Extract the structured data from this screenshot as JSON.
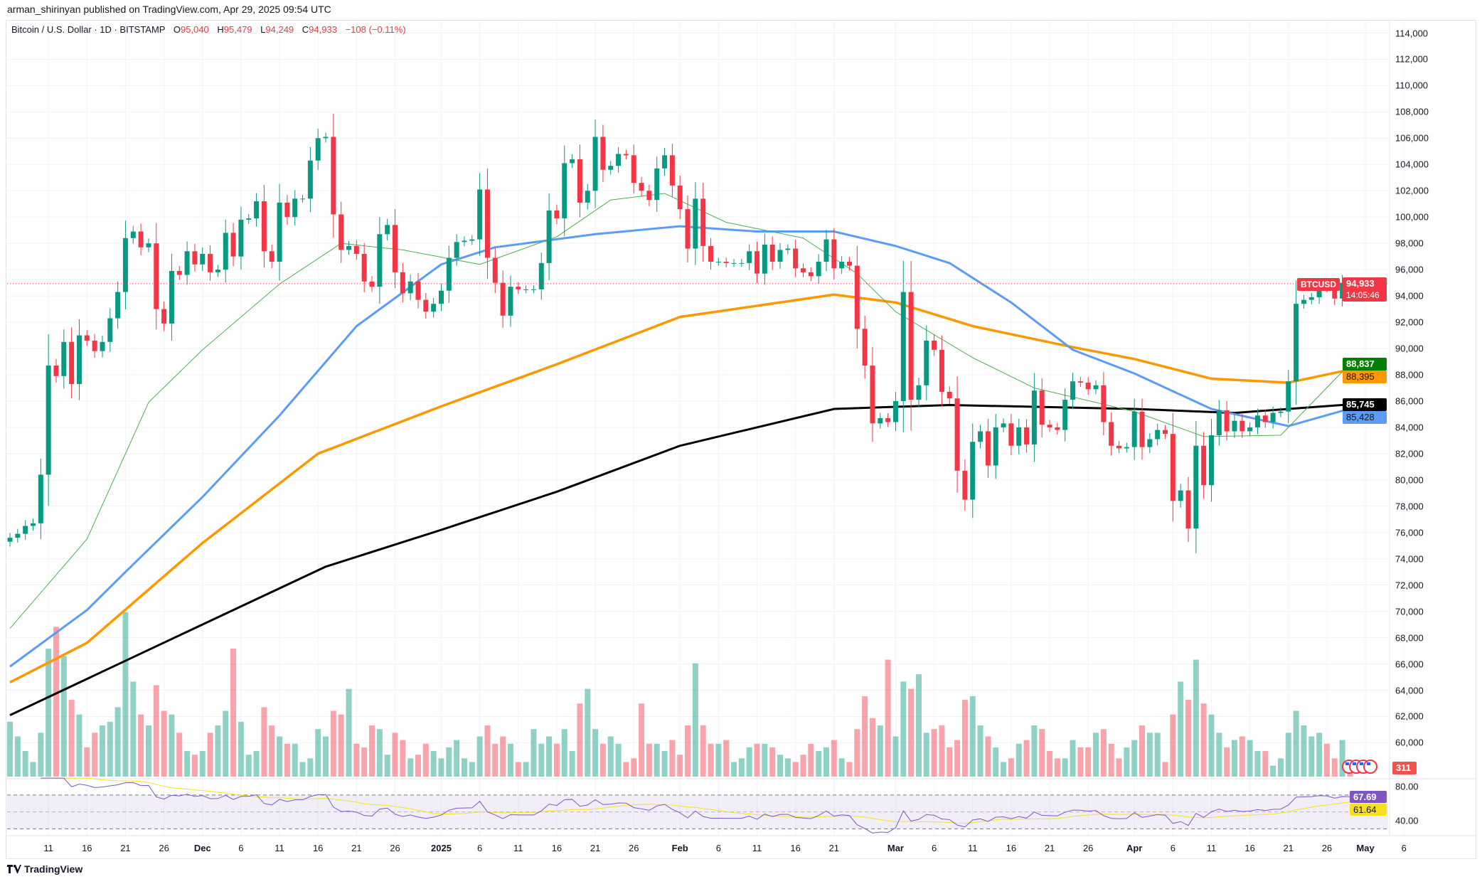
{
  "publisher": "arman_shirinyan published on TradingView.com, Apr 29, 2025 09:54 UTC",
  "legend": {
    "symbol": "Bitcoin / U.S. Dollar · 1D · BITSTAMP",
    "o_label": "O",
    "o": "95,040",
    "h_label": "H",
    "h": "95,479",
    "l_label": "L",
    "l": "94,249",
    "c_label": "C",
    "c": "94,933",
    "change": "−108 (−0.11%)"
  },
  "tags": {
    "symbol": "BTCUSD",
    "price": "94,933",
    "countdown": "14:05:46",
    "ma20": "88,837",
    "ma100": "88,395",
    "ma200": "85,745",
    "ma50": "85,428",
    "volume": "311",
    "rsi": "67.69",
    "rsi_ma": "61.64"
  },
  "colors": {
    "up": "#089981",
    "down": "#f23645",
    "ma20": "#4caf50",
    "ma50": "#5b9cf6",
    "ma100": "#ff9800",
    "ma200": "#000000",
    "rsi": "#7e57c2",
    "rsi_ma": "#f7e11e"
  },
  "logo": "TradingView",
  "chart_data": {
    "type": "candlestick",
    "start_date": "2024-11-06",
    "first_open": 75300,
    "closes": [
      75600,
      75900,
      76500,
      76700,
      80400,
      88700,
      87900,
      90500,
      87300,
      91000,
      90600,
      89800,
      90500,
      92300,
      94300,
      98400,
      98900,
      97700,
      98000,
      93000,
      91900,
      95900,
      95600,
      97400,
      96400,
      97200,
      95800,
      96000,
      98800,
      97000,
      99800,
      99900,
      101200,
      97400,
      96600,
      101100,
      100000,
      101400,
      101400,
      104300,
      106000,
      106100,
      100200,
      97500,
      97800,
      97200,
      95100,
      94700,
      98700,
      99400,
      95800,
      94200,
      95100,
      93700,
      92800,
      93400,
      94400,
      96900,
      98100,
      98200,
      98300,
      102100,
      96900,
      95000,
      92500,
      94700,
      94500,
      94500,
      94500,
      96500,
      100500,
      99900,
      104100,
      104400,
      101100,
      102000,
      106100,
      103600,
      103900,
      104800,
      104700,
      102600,
      102000,
      101300,
      103700,
      104700,
      102400,
      100600,
      97600,
      101400,
      97800,
      96600,
      96600,
      96500,
      96500,
      96500,
      97400,
      95700,
      97900,
      96600,
      97500,
      97600,
      96100,
      95800,
      95500,
      96600,
      98300,
      96100,
      96600,
      96300,
      91500,
      88700,
      84300,
      84700,
      84400,
      86000,
      94300,
      86100,
      87200,
      90600,
      89900,
      86700,
      86200,
      80700,
      78500,
      82900,
      83700,
      81100,
      84000,
      84300,
      82600,
      84000,
      82700,
      86800,
      84200,
      84000,
      83800,
      86100,
      87500,
      87400,
      86900,
      87200,
      84400,
      82600,
      82400,
      82500,
      85200,
      82500,
      83100,
      83800,
      83500,
      78400,
      79200,
      76300,
      82600,
      79600,
      83400,
      85300,
      83700,
      84500,
      83700,
      84000,
      84900,
      84400,
      85100,
      85200,
      87500,
      93400,
      93700,
      93900,
      94700,
      94600,
      93800,
      95000,
      94933
    ],
    "volumes": [
      1500,
      1100,
      700,
      400,
      1200,
      3500,
      4100,
      3300,
      2100,
      1700,
      800,
      1200,
      1400,
      1500,
      1900,
      4500,
      2600,
      1700,
      1400,
      2500,
      1800,
      1700,
      1200,
      700,
      600,
      700,
      1200,
      1400,
      1800,
      3500,
      1500,
      600,
      700,
      1900,
      1400,
      1100,
      900,
      900,
      400,
      500,
      1300,
      1100,
      1800,
      1700,
      2400,
      900,
      800,
      1400,
      1300,
      600,
      1200,
      1000,
      500,
      600,
      900,
      700,
      500,
      800,
      1000,
      500,
      400,
      1100,
      1400,
      900,
      1100,
      900,
      400,
      400,
      1300,
      900,
      1100,
      900,
      1300,
      700,
      2000,
      2400,
      1300,
      900,
      1100,
      900,
      400,
      500,
      2000,
      900,
      900,
      700,
      1000,
      600,
      1400,
      3100,
      1400,
      900,
      900,
      1000,
      400,
      500,
      800,
      900,
      900,
      800,
      600,
      500,
      400,
      600,
      900,
      700,
      800,
      1000,
      500,
      400,
      1300,
      2200,
      1600,
      1400,
      3200,
      1100,
      2600,
      2400,
      2800,
      1200,
      1300,
      1400,
      800,
      1000,
      2100,
      2200,
      1400,
      1100,
      800,
      400,
      500,
      900,
      1000,
      1400,
      1300,
      700,
      500,
      500,
      1000,
      800,
      800,
      1200,
      1300,
      900,
      500,
      800,
      1000,
      1400,
      1200,
      1200,
      400,
      1700,
      2600,
      2100,
      3200,
      2000,
      1700,
      1200,
      800,
      1000,
      1100,
      1000,
      700,
      700,
      300,
      500,
      1200,
      1800,
      1400,
      1100,
      1200,
      900,
      500,
      1000,
      311
    ],
    "moving_averages": [
      {
        "name": "MA20",
        "points": [
          [
            0,
            68700
          ],
          [
            10,
            75500
          ],
          [
            18,
            85900
          ],
          [
            25,
            89900
          ],
          [
            35,
            94900
          ],
          [
            43,
            98000
          ],
          [
            51,
            97500
          ],
          [
            61,
            96400
          ],
          [
            71,
            98500
          ],
          [
            78,
            101300
          ],
          [
            85,
            101800
          ],
          [
            93,
            99600
          ],
          [
            103,
            98400
          ],
          [
            110,
            95700
          ],
          [
            115,
            92800
          ],
          [
            125,
            89300
          ],
          [
            133,
            87000
          ],
          [
            146,
            85200
          ],
          [
            155,
            83300
          ],
          [
            165,
            83400
          ],
          [
            174,
            88837
          ]
        ]
      },
      {
        "name": "MA50",
        "points": [
          [
            0,
            65800
          ],
          [
            10,
            70100
          ],
          [
            15,
            73000
          ],
          [
            25,
            78700
          ],
          [
            35,
            84900
          ],
          [
            45,
            91700
          ],
          [
            56,
            96400
          ],
          [
            63,
            97700
          ],
          [
            76,
            98700
          ],
          [
            87,
            99300
          ],
          [
            97,
            98900
          ],
          [
            107,
            98900
          ],
          [
            115,
            97800
          ],
          [
            122,
            96500
          ],
          [
            130,
            93500
          ],
          [
            138,
            89900
          ],
          [
            146,
            88100
          ],
          [
            156,
            85400
          ],
          [
            166,
            84100
          ],
          [
            174,
            85428
          ]
        ]
      },
      {
        "name": "MA100",
        "points": [
          [
            0,
            64600
          ],
          [
            10,
            67600
          ],
          [
            25,
            75200
          ],
          [
            40,
            82000
          ],
          [
            56,
            85600
          ],
          [
            71,
            88800
          ],
          [
            87,
            92400
          ],
          [
            107,
            94100
          ],
          [
            115,
            93500
          ],
          [
            125,
            91700
          ],
          [
            138,
            90100
          ],
          [
            146,
            89200
          ],
          [
            156,
            87700
          ],
          [
            166,
            87400
          ],
          [
            174,
            88395
          ]
        ]
      },
      {
        "name": "MA200",
        "points": [
          [
            0,
            62100
          ],
          [
            25,
            69000
          ],
          [
            41,
            73400
          ],
          [
            56,
            76200
          ],
          [
            71,
            79100
          ],
          [
            87,
            82600
          ],
          [
            107,
            85400
          ],
          [
            122,
            85700
          ],
          [
            146,
            85400
          ],
          [
            159,
            85100
          ],
          [
            174,
            85745
          ]
        ]
      }
    ],
    "y_ticks": [
      60000,
      62000,
      64000,
      66000,
      68000,
      70000,
      72000,
      74000,
      76000,
      78000,
      80000,
      82000,
      84000,
      86000,
      88000,
      90000,
      92000,
      94000,
      96000,
      98000,
      100000,
      102000,
      104000,
      106000,
      108000,
      110000,
      112000,
      114000
    ],
    "y_tick_labels": [
      "60,000",
      "62,000",
      "64,000",
      "66,000",
      "68,000",
      "70,000",
      "72,000",
      "74,000",
      "76,000",
      "78,000",
      "80,000",
      "82,000",
      "84,000",
      "86,000",
      "88,000",
      "90,000",
      "92,000",
      "94,000",
      "96,000",
      "98,000",
      "100,000",
      "102,000",
      "104,000",
      "106,000",
      "108,000",
      "110,000",
      "112,000",
      "114,000"
    ],
    "x_ticks": [
      {
        "i": 5,
        "label": "11"
      },
      {
        "i": 10,
        "label": "16"
      },
      {
        "i": 15,
        "label": "21"
      },
      {
        "i": 20,
        "label": "26"
      },
      {
        "i": 25,
        "label": "Dec"
      },
      {
        "i": 30,
        "label": "6"
      },
      {
        "i": 35,
        "label": "11"
      },
      {
        "i": 40,
        "label": "16"
      },
      {
        "i": 45,
        "label": "21"
      },
      {
        "i": 50,
        "label": "26"
      },
      {
        "i": 56,
        "label": "2025"
      },
      {
        "i": 61,
        "label": "6"
      },
      {
        "i": 66,
        "label": "11"
      },
      {
        "i": 71,
        "label": "16"
      },
      {
        "i": 76,
        "label": "21"
      },
      {
        "i": 81,
        "label": "26"
      },
      {
        "i": 87,
        "label": "Feb"
      },
      {
        "i": 92,
        "label": "6"
      },
      {
        "i": 97,
        "label": "11"
      },
      {
        "i": 102,
        "label": "16"
      },
      {
        "i": 107,
        "label": "21"
      },
      {
        "i": 115,
        "label": "Mar"
      },
      {
        "i": 120,
        "label": "6"
      },
      {
        "i": 125,
        "label": "11"
      },
      {
        "i": 130,
        "label": "16"
      },
      {
        "i": 135,
        "label": "21"
      },
      {
        "i": 140,
        "label": "26"
      },
      {
        "i": 146,
        "label": "Apr"
      },
      {
        "i": 151,
        "label": "6"
      },
      {
        "i": 156,
        "label": "11"
      },
      {
        "i": 161,
        "label": "16"
      },
      {
        "i": 166,
        "label": "21"
      },
      {
        "i": 171,
        "label": "26"
      },
      {
        "i": 176,
        "label": "May"
      },
      {
        "i": 181,
        "label": "6"
      }
    ],
    "rsi": {
      "period": 14,
      "upper": 70,
      "middle": 50,
      "lower": 30,
      "ticks": [
        "80.00",
        "40.00"
      ],
      "tick_values": [
        80,
        40
      ]
    }
  }
}
